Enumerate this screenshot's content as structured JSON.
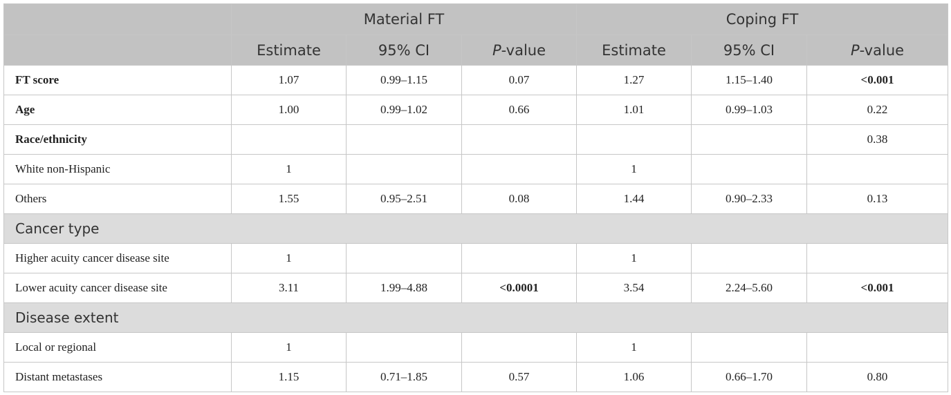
{
  "header": {
    "group1": "Material FT",
    "group2": "Coping FT",
    "cols": {
      "estimate": "Estimate",
      "ci": "95% CI",
      "p_prefix": "P",
      "p_suffix": "-value"
    }
  },
  "rows": [
    {
      "type": "data",
      "label": "FT score",
      "label_bold": true,
      "cells": [
        "1.07",
        "0.99–1.15",
        "0.07",
        "1.27",
        "1.15–1.40",
        "<0.001"
      ],
      "bold_cells": [
        5
      ]
    },
    {
      "type": "data",
      "label": "Age",
      "label_bold": true,
      "cells": [
        "1.00",
        "0.99–1.02",
        "0.66",
        "1.01",
        "0.99–1.03",
        "0.22"
      ],
      "bold_cells": []
    },
    {
      "type": "data",
      "label": "Race/ethnicity",
      "label_bold": true,
      "cells": [
        "",
        "",
        "",
        "",
        "",
        "0.38"
      ],
      "bold_cells": []
    },
    {
      "type": "data",
      "label": "White non-Hispanic",
      "label_bold": false,
      "cells": [
        "1",
        "",
        "",
        "1",
        "",
        ""
      ],
      "bold_cells": []
    },
    {
      "type": "data",
      "label": "Others",
      "label_bold": false,
      "cells": [
        "1.55",
        "0.95–2.51",
        "0.08",
        "1.44",
        "0.90–2.33",
        "0.13"
      ],
      "bold_cells": []
    },
    {
      "type": "section",
      "label": "Cancer type"
    },
    {
      "type": "data",
      "label": "Higher acuity cancer disease site",
      "label_bold": false,
      "cells": [
        "1",
        "",
        "",
        "1",
        "",
        ""
      ],
      "bold_cells": []
    },
    {
      "type": "data",
      "label": "Lower acuity cancer disease site",
      "label_bold": false,
      "cells": [
        "3.11",
        "1.99–4.88",
        "<0.0001",
        "3.54",
        "2.24–5.60",
        "<0.001"
      ],
      "bold_cells": [
        2,
        5
      ]
    },
    {
      "type": "section",
      "label": "Disease extent"
    },
    {
      "type": "data",
      "label": "Local or regional",
      "label_bold": false,
      "cells": [
        "1",
        "",
        "",
        "1",
        "",
        ""
      ],
      "bold_cells": []
    },
    {
      "type": "data",
      "label": "Distant metastases",
      "label_bold": false,
      "cells": [
        "1.15",
        "0.71–1.85",
        "0.57",
        "1.06",
        "0.66–1.70",
        "0.80"
      ],
      "bold_cells": []
    }
  ]
}
